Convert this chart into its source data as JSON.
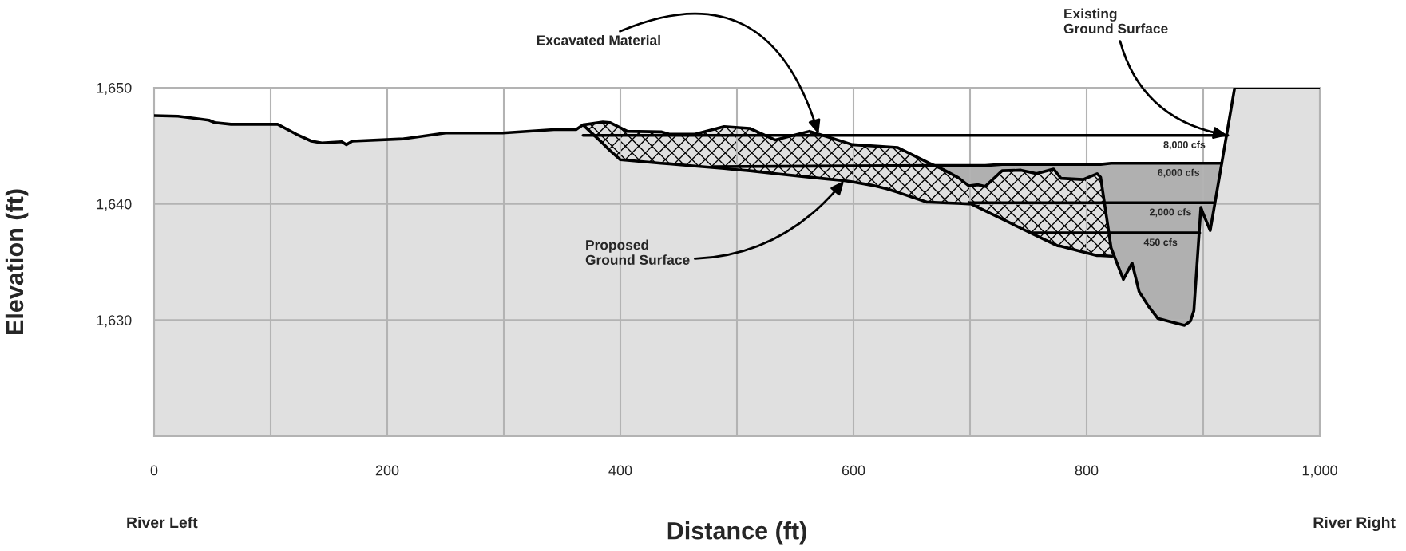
{
  "chart_data": {
    "type": "area",
    "xlabel": "Distance (ft)",
    "ylabel": "Elevation (ft)",
    "xlim": [
      0,
      1000
    ],
    "ylim": [
      1620,
      1650
    ],
    "xticks": [
      0,
      {
        "value": 100,
        "label": null
      },
      200,
      {
        "value": 300,
        "label": null
      },
      400,
      {
        "value": 500,
        "label": null
      },
      600,
      {
        "value": 700,
        "label": null
      },
      800,
      {
        "value": 900,
        "label": null
      },
      {
        "value": 1000,
        "label": "1,000"
      }
    ],
    "yticks": [
      {
        "value": 1620,
        "label": null
      },
      {
        "value": 1630,
        "label": "1,630"
      },
      {
        "value": 1640,
        "label": "1,640"
      },
      {
        "value": 1650,
        "label": "1,650"
      }
    ],
    "grid": true,
    "series": [
      {
        "color": "#e0e0e0",
        "x": [
          0,
          20.5,
          47,
          52,
          66,
          106,
          122,
          135,
          144,
          161,
          165,
          170,
          214,
          250,
          299,
          343,
          362,
          368,
          385,
          391,
          406,
          435,
          442,
          464,
          489,
          511,
          533,
          562,
          577,
          599,
          638,
          665,
          677,
          690,
          699,
          707,
          713,
          727.5,
          743.6,
          757,
          771.6,
          778,
          797,
          809,
          812,
          821,
          831.5,
          839,
          845,
          853,
          861,
          884,
          889,
          892,
          898,
          900,
          906,
          927,
          1000
        ],
        "values": [
          1647.6,
          1647.55,
          1647.2,
          1647.0,
          1646.85,
          1646.85,
          1646.0,
          1645.4,
          1645.25,
          1645.35,
          1645.1,
          1645.4,
          1645.6,
          1646.1,
          1646.1,
          1646.4,
          1646.4,
          1646.8,
          1647.05,
          1647.0,
          1646.25,
          1646.2,
          1646.0,
          1646.0,
          1646.65,
          1646.5,
          1645.5,
          1646.25,
          1645.8,
          1645.1,
          1644.85,
          1643.5,
          1642.95,
          1642.25,
          1641.55,
          1641.65,
          1641.5,
          1642.85,
          1642.9,
          1642.6,
          1643.0,
          1642.2,
          1642.1,
          1642.6,
          1642.3,
          1636.2,
          1633.5,
          1634.9,
          1632.45,
          1631.2,
          1630.15,
          1629.55,
          1629.9,
          1630.8,
          1639.7,
          1639.15,
          1637.7,
          1650,
          1650
        ]
      },
      {
        "type": "line",
        "color": "#000000",
        "x": [
          368,
          385,
          391,
          400,
          406,
          435,
          442,
          464,
          489,
          499,
          511,
          533,
          562,
          577,
          592,
          599,
          616,
          628.5,
          638,
          663,
          665,
          677,
          690,
          699,
          700.7,
          707,
          713,
          727.5,
          735.6,
          743.6,
          757,
          771.6,
          775,
          778,
          797,
          809,
          810,
          812,
          821,
          822
        ],
        "values": [
          1646.8,
          1645.2,
          1644.6,
          1643.8,
          1643.75,
          1643.5,
          1643.45,
          1643.25,
          1643.05,
          1642.95,
          1642.85,
          1642.6,
          1642.3,
          1642.15,
          1642.0,
          1641.9,
          1641.6,
          1641.3,
          1641.0,
          1640.15,
          1640.15,
          1640.1,
          1640.05,
          1640.0,
          1640.0,
          1639.7,
          1639.4,
          1638.7,
          1638.3,
          1637.9,
          1637.25,
          1636.55,
          1636.4,
          1636.35,
          1635.85,
          1635.55,
          1635.55,
          1635.55,
          1635.5,
          1635.5
        ],
        "lower": [
          1646.8,
          1645.2,
          1644.6,
          1643.8,
          1643.75,
          1643.5,
          1643.45,
          1643.25,
          1643.05,
          1642.95,
          1642.85,
          1642.6,
          1642.3,
          1642.15,
          1642.0,
          1641.9,
          1641.6,
          1641.3,
          1641.0,
          1640.15,
          1640.15,
          1640.1,
          1640.05,
          1640.0,
          1640.0,
          1639.7,
          1639.4,
          1638.7,
          1638.3,
          1637.9,
          1637.25,
          1636.55,
          1636.4,
          1636.35,
          1635.85,
          1635.55,
          1635.55,
          1635.55,
          1635.5,
          1635.5
        ],
        "upper": [
          1646.8,
          1647.05,
          1647.0,
          1646.55,
          1646.25,
          1646.2,
          1646.0,
          1646.0,
          1646.65,
          1646.6,
          1646.5,
          1645.5,
          1646.25,
          1645.8,
          1645.35,
          1645.1,
          1645.0,
          1644.9,
          1644.85,
          1643.6,
          1643.5,
          1642.95,
          1642.25,
          1641.55,
          1641.55,
          1641.65,
          1641.5,
          1642.85,
          1642.85,
          1642.9,
          1642.6,
          1643.0,
          1642.6,
          1642.2,
          1642.1,
          1642.6,
          1642.5,
          1642.3,
          1636.2,
          1635.9
        ]
      },
      {
        "type": "line",
        "name": "8,000 cfs",
        "color": "#000000",
        "x": [
          368,
          921
        ],
        "values": [
          1645.9,
          1645.9
        ]
      },
      {
        "type": "line",
        "name": "6,000 cfs",
        "color": "#000000",
        "x": [
          480,
          669,
          677,
          690,
          699,
          707,
          713,
          727.5,
          743.6,
          757,
          771.6,
          778,
          797,
          809,
          812,
          821,
          831.5,
          839,
          845,
          853,
          861,
          884,
          889,
          892,
          898,
          900,
          906,
          916
        ],
        "values": [
          1643.2,
          1643.3,
          1643.3,
          1643.3,
          1643.3,
          1643.3,
          1643.3,
          1643.4,
          1643.4,
          1643.4,
          1643.4,
          1643.4,
          1643.4,
          1643.4,
          1643.4,
          1643.5,
          1643.5,
          1643.5,
          1643.5,
          1643.5,
          1643.5,
          1643.5,
          1643.5,
          1643.5,
          1643.5,
          1643.5,
          1643.5,
          1643.5
        ],
        "lower": [
          null,
          1643.3,
          1642.95,
          1642.25,
          1641.55,
          1641.65,
          1641.5,
          1642.85,
          1642.9,
          1642.6,
          1643.0,
          1642.2,
          1642.1,
          1642.6,
          1642.3,
          1636.2,
          1633.5,
          1634.9,
          1632.45,
          1631.2,
          1630.15,
          1629.55,
          1629.9,
          1630.8,
          1639.7,
          1639.15,
          1637.7,
          1643.5
        ],
        "upper": [
          null,
          1643.3,
          1643.3,
          1643.3,
          1643.3,
          1643.3,
          1643.3,
          1643.4,
          1643.4,
          1643.4,
          1643.4,
          1643.4,
          1643.4,
          1643.4,
          1643.4,
          1643.5,
          1643.5,
          1643.5,
          1643.5,
          1643.5,
          1643.5,
          1643.5,
          1643.5,
          1643.5,
          1643.5,
          1643.5,
          1643.5,
          1643.5
        ]
      },
      {
        "type": "line",
        "name": "2,000 cfs",
        "color": "#000000",
        "x": [
          699,
          909
        ],
        "values": [
          1640.1,
          1640.1
        ]
      },
      {
        "type": "line",
        "name": "450 cfs",
        "color": "#000000",
        "x": [
          752,
          897
        ],
        "values": [
          1637.5,
          1637.5
        ]
      }
    ],
    "annotations": [
      {
        "text": "Excavated Material",
        "x": 570,
        "y": 1646.0
      },
      {
        "text": "Existing\nGround Surface",
        "x": 921,
        "y": 1645.9
      },
      {
        "text": "Proposed\nGround Surface",
        "x": 592,
        "y": 1642.0
      },
      "River Left",
      "River Right"
    ]
  }
}
